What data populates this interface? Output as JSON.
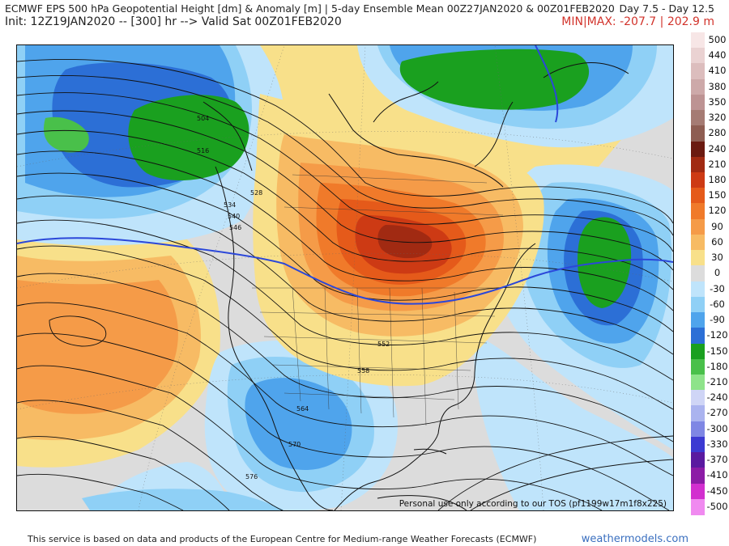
{
  "header": {
    "title": "ECMWF EPS 500 hPa Geopotential Height [dm] & Anomaly [m] | 5-day Ensemble Mean 00Z27JAN2020 & 00Z01FEB2020",
    "days": "Day 7.5 - Day 12.5",
    "init": "Init: 12Z19JAN2020 -- [300] hr --> Valid Sat 00Z01FEB2020",
    "minmax": "MIN|MAX: -207.7 | 202.9 m"
  },
  "map": {
    "tos_note": "Personal use only according to our TOS (pf1199w17m1f8x225)",
    "contour_labels": [
      "504",
      "516",
      "528",
      "534",
      "540",
      "546",
      "552",
      "558",
      "564",
      "570",
      "576"
    ]
  },
  "legend": [
    {
      "label": "500",
      "color": "#f7e6e6"
    },
    {
      "label": "440",
      "color": "#ead2d2"
    },
    {
      "label": "410",
      "color": "#dcbdbd"
    },
    {
      "label": "380",
      "color": "#cda9a9"
    },
    {
      "label": "350",
      "color": "#bd9393"
    },
    {
      "label": "320",
      "color": "#a57b73"
    },
    {
      "label": "280",
      "color": "#8e5d52"
    },
    {
      "label": "240",
      "color": "#6b1a10"
    },
    {
      "label": "210",
      "color": "#a12a12"
    },
    {
      "label": "180",
      "color": "#cd3a14"
    },
    {
      "label": "150",
      "color": "#e55a1a"
    },
    {
      "label": "120",
      "color": "#f07a2a"
    },
    {
      "label": "90",
      "color": "#f59b48"
    },
    {
      "label": "60",
      "color": "#f7bb64"
    },
    {
      "label": "30",
      "color": "#f8e08a"
    },
    {
      "label": "0",
      "color": "#dcdcdc"
    },
    {
      "label": "-30",
      "color": "#bfe4fb"
    },
    {
      "label": "-60",
      "color": "#8fd0f6"
    },
    {
      "label": "-90",
      "color": "#4fa4ec"
    },
    {
      "label": "-120",
      "color": "#2c6fd6"
    },
    {
      "label": "-150",
      "color": "#1aa01f"
    },
    {
      "label": "-180",
      "color": "#49c04a"
    },
    {
      "label": "-210",
      "color": "#8ee38a"
    },
    {
      "label": "-240",
      "color": "#cfd5f6"
    },
    {
      "label": "-270",
      "color": "#aab3ef"
    },
    {
      "label": "-300",
      "color": "#7f87e4"
    },
    {
      "label": "-330",
      "color": "#3c3ad2"
    },
    {
      "label": "-370",
      "color": "#5a1aa0"
    },
    {
      "label": "-410",
      "color": "#8c1ca6"
    },
    {
      "label": "-450",
      "color": "#d22fcf"
    },
    {
      "label": "-500",
      "color": "#f08af0"
    }
  ],
  "footer": {
    "text": "This service is based on data and products of the European Centre for Medium-range Weather Forecasts (ECMWF)",
    "site": "weathermodels.com"
  }
}
